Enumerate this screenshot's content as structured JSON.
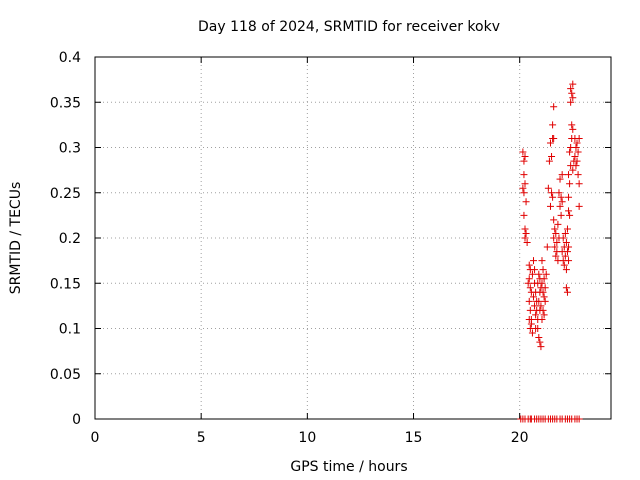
{
  "chart_data": {
    "type": "scatter",
    "title": "Day 118 of 2024, SRMTID for receiver kokv",
    "xlabel": "GPS time / hours",
    "ylabel": "SRMTID / TECUs",
    "xlim": [
      0,
      24.3
    ],
    "ylim": [
      0,
      0.4
    ],
    "xticks": [
      0,
      5,
      10,
      15,
      20
    ],
    "xtick_labels": [
      "0",
      "5",
      "10",
      "15",
      "20"
    ],
    "yticks": [
      0,
      0.05,
      0.1,
      0.15,
      0.2,
      0.25,
      0.3,
      0.35,
      0.4
    ],
    "ytick_labels": [
      "0",
      "0.05",
      "0.1",
      "0.15",
      "0.2",
      "0.25",
      "0.3",
      "0.35",
      "0.4"
    ],
    "grid": true,
    "marker": "+",
    "color": "#e00000",
    "series": [
      {
        "name": "SRMTID",
        "points": [
          [
            20.15,
            0.295
          ],
          [
            20.2,
            0.285
          ],
          [
            20.25,
            0.29
          ],
          [
            20.2,
            0.27
          ],
          [
            20.15,
            0.255
          ],
          [
            20.25,
            0.26
          ],
          [
            20.2,
            0.25
          ],
          [
            20.3,
            0.24
          ],
          [
            20.2,
            0.225
          ],
          [
            20.25,
            0.21
          ],
          [
            20.3,
            0.205
          ],
          [
            20.35,
            0.195
          ],
          [
            20.25,
            0.2
          ],
          [
            20.45,
            0.17
          ],
          [
            20.5,
            0.165
          ],
          [
            20.45,
            0.155
          ],
          [
            20.4,
            0.15
          ],
          [
            20.5,
            0.145
          ],
          [
            20.55,
            0.14
          ],
          [
            20.45,
            0.13
          ],
          [
            20.5,
            0.12
          ],
          [
            20.45,
            0.11
          ],
          [
            20.55,
            0.105
          ],
          [
            20.5,
            0.1
          ],
          [
            20.6,
            0.095
          ],
          [
            20.55,
            0.11
          ],
          [
            20.65,
            0.175
          ],
          [
            20.7,
            0.165
          ],
          [
            20.6,
            0.16
          ],
          [
            20.7,
            0.15
          ],
          [
            20.75,
            0.14
          ],
          [
            20.65,
            0.135
          ],
          [
            20.8,
            0.13
          ],
          [
            20.7,
            0.125
          ],
          [
            20.75,
            0.115
          ],
          [
            20.8,
            0.12
          ],
          [
            20.85,
            0.11
          ],
          [
            20.75,
            0.1
          ],
          [
            20.9,
            0.16
          ],
          [
            20.95,
            0.155
          ],
          [
            20.85,
            0.15
          ],
          [
            21.0,
            0.145
          ],
          [
            20.95,
            0.14
          ],
          [
            20.9,
            0.13
          ],
          [
            21.0,
            0.125
          ],
          [
            20.95,
            0.12
          ],
          [
            21.05,
            0.11
          ],
          [
            20.9,
            0.09
          ],
          [
            20.95,
            0.085
          ],
          [
            21.0,
            0.08
          ],
          [
            20.85,
            0.1
          ],
          [
            21.05,
            0.175
          ],
          [
            21.1,
            0.165
          ],
          [
            21.15,
            0.155
          ],
          [
            21.05,
            0.15
          ],
          [
            21.2,
            0.145
          ],
          [
            21.1,
            0.14
          ],
          [
            21.15,
            0.135
          ],
          [
            21.2,
            0.13
          ],
          [
            21.1,
            0.12
          ],
          [
            21.15,
            0.115
          ],
          [
            21.25,
            0.16
          ],
          [
            21.3,
            0.19
          ],
          [
            21.35,
            0.255
          ],
          [
            21.4,
            0.285
          ],
          [
            21.5,
            0.29
          ],
          [
            21.45,
            0.305
          ],
          [
            21.55,
            0.31
          ],
          [
            21.6,
            0.31
          ],
          [
            21.55,
            0.325
          ],
          [
            21.6,
            0.345
          ],
          [
            21.5,
            0.25
          ],
          [
            21.45,
            0.235
          ],
          [
            21.55,
            0.245
          ],
          [
            21.6,
            0.22
          ],
          [
            21.65,
            0.21
          ],
          [
            21.7,
            0.205
          ],
          [
            21.6,
            0.2
          ],
          [
            21.75,
            0.195
          ],
          [
            21.65,
            0.19
          ],
          [
            21.7,
            0.18
          ],
          [
            21.8,
            0.175
          ],
          [
            21.75,
            0.185
          ],
          [
            21.85,
            0.2
          ],
          [
            21.8,
            0.215
          ],
          [
            21.9,
            0.235
          ],
          [
            21.95,
            0.245
          ],
          [
            21.85,
            0.25
          ],
          [
            22.0,
            0.24
          ],
          [
            21.9,
            0.265
          ],
          [
            22.0,
            0.27
          ],
          [
            21.95,
            0.225
          ],
          [
            22.05,
            0.2
          ],
          [
            22.1,
            0.19
          ],
          [
            22.0,
            0.185
          ],
          [
            22.15,
            0.18
          ],
          [
            22.05,
            0.175
          ],
          [
            22.1,
            0.17
          ],
          [
            22.2,
            0.165
          ],
          [
            22.15,
            0.205
          ],
          [
            22.25,
            0.21
          ],
          [
            22.2,
            0.195
          ],
          [
            22.3,
            0.19
          ],
          [
            22.25,
            0.185
          ],
          [
            22.3,
            0.175
          ],
          [
            22.2,
            0.145
          ],
          [
            22.25,
            0.14
          ],
          [
            22.3,
            0.23
          ],
          [
            22.35,
            0.225
          ],
          [
            22.3,
            0.245
          ],
          [
            22.35,
            0.26
          ],
          [
            22.3,
            0.27
          ],
          [
            22.4,
            0.28
          ],
          [
            22.35,
            0.295
          ],
          [
            22.4,
            0.3
          ],
          [
            22.45,
            0.31
          ],
          [
            22.5,
            0.32
          ],
          [
            22.45,
            0.325
          ],
          [
            22.4,
            0.35
          ],
          [
            22.5,
            0.355
          ],
          [
            22.45,
            0.36
          ],
          [
            22.5,
            0.37
          ],
          [
            22.4,
            0.365
          ],
          [
            22.55,
            0.285
          ],
          [
            22.6,
            0.29
          ],
          [
            22.5,
            0.275
          ],
          [
            22.65,
            0.3
          ],
          [
            22.6,
            0.31
          ],
          [
            22.7,
            0.305
          ],
          [
            22.65,
            0.28
          ],
          [
            22.75,
            0.27
          ],
          [
            22.7,
            0.285
          ],
          [
            22.8,
            0.26
          ],
          [
            22.75,
            0.295
          ],
          [
            22.8,
            0.31
          ],
          [
            22.8,
            0.235
          ],
          [
            20.05,
            0.0
          ],
          [
            20.15,
            0.0
          ],
          [
            20.25,
            0.0
          ],
          [
            20.4,
            0.0
          ],
          [
            20.5,
            0.0
          ],
          [
            20.55,
            0.0
          ],
          [
            20.7,
            0.0
          ],
          [
            20.8,
            0.0
          ],
          [
            20.9,
            0.0
          ],
          [
            21.0,
            0.0
          ],
          [
            21.1,
            0.0
          ],
          [
            21.2,
            0.0
          ],
          [
            21.35,
            0.0
          ],
          [
            21.45,
            0.0
          ],
          [
            21.55,
            0.0
          ],
          [
            21.65,
            0.0
          ],
          [
            21.75,
            0.0
          ],
          [
            21.9,
            0.0
          ],
          [
            22.0,
            0.0
          ],
          [
            22.15,
            0.0
          ],
          [
            22.25,
            0.0
          ],
          [
            22.35,
            0.0
          ],
          [
            22.45,
            0.0
          ],
          [
            22.6,
            0.0
          ],
          [
            22.7,
            0.0
          ],
          [
            22.8,
            0.0
          ]
        ]
      }
    ]
  }
}
